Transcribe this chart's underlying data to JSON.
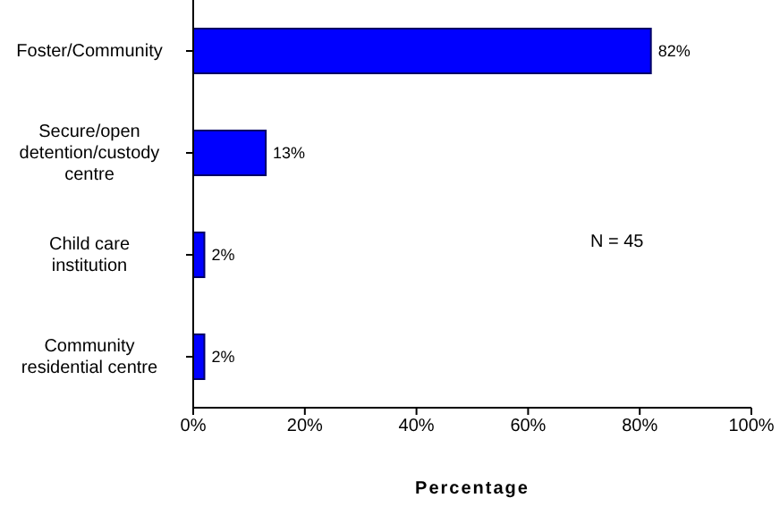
{
  "chart_data": {
    "type": "bar",
    "orientation": "horizontal",
    "categories": [
      "Foster/Community",
      "Secure/open detention/custody centre",
      "Child care institution",
      "Community residential centre"
    ],
    "values": [
      82,
      13,
      2,
      2
    ],
    "value_labels": [
      "82%",
      "13%",
      "2%",
      "2%"
    ],
    "color": "#0000ff",
    "xlabel": "Percentage",
    "xlim": [
      0,
      100
    ],
    "xticks": [
      {
        "value": 0,
        "label": "0%"
      },
      {
        "value": 20,
        "label": "20%"
      },
      {
        "value": 40,
        "label": "40%"
      },
      {
        "value": 60,
        "label": "60%"
      },
      {
        "value": 80,
        "label": "80%"
      },
      {
        "value": 100,
        "label": "100%"
      }
    ],
    "annotations": [
      "N = 45"
    ],
    "grid": false,
    "legend": false
  }
}
